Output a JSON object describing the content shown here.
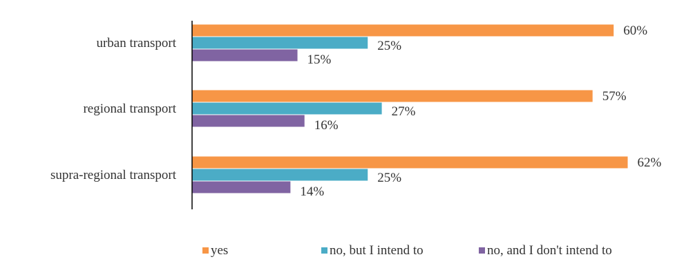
{
  "chart_data": {
    "type": "bar",
    "orientation": "horizontal",
    "categories": [
      "urban transport",
      "regional transport",
      "supra-regional transport"
    ],
    "series": [
      {
        "name": "yes",
        "color": "#F79646",
        "values": [
          60,
          57,
          62
        ],
        "labels": [
          "60%",
          "57%",
          "62%"
        ]
      },
      {
        "name": "no, but I intend to",
        "color": "#4BACC6",
        "values": [
          25,
          27,
          25
        ],
        "labels": [
          "25%",
          "27%",
          "25%"
        ]
      },
      {
        "name": "no, and I don't intend to",
        "color": "#8064A2",
        "values": [
          15,
          16,
          14
        ],
        "labels": [
          "15%",
          "16%",
          "14%"
        ]
      }
    ],
    "title": "",
    "xlabel": "",
    "ylabel": "",
    "xlim": [
      0,
      64
    ],
    "grid": false,
    "legend_position": "bottom"
  }
}
